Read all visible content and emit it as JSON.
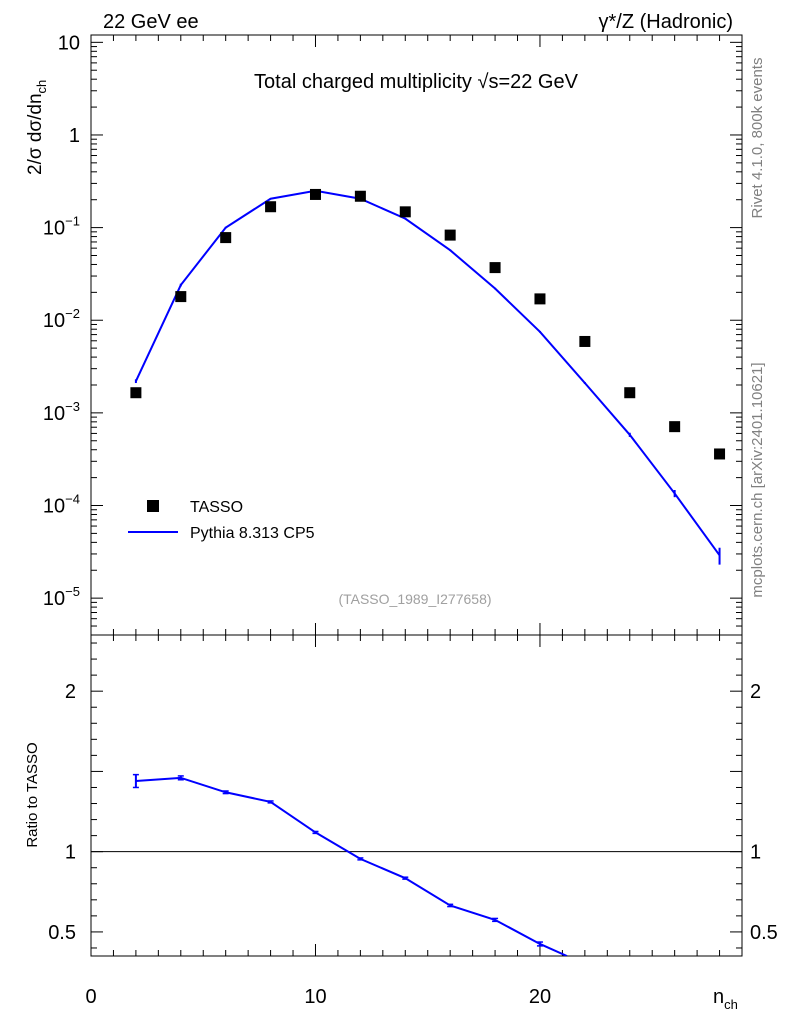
{
  "header": {
    "left_label": "22 GeV ee",
    "right_label": "γ*/Z (Hadronic)"
  },
  "side_labels": {
    "rivet": "Rivet 4.1.0,  800k events",
    "mcplots": "mcplots.cern.ch [arXiv:2401.10621]"
  },
  "chart_data": {
    "type": "scatter",
    "title": "Total charged multiplicity √s=22 GeV",
    "analysis_id": "(TASSO_1989_I277658)",
    "xlabel": "n_ch",
    "ylabel_main": "2/σ  dσ/dn_ch",
    "ylabel_ratio": "Ratio to TASSO",
    "xlim": [
      0,
      29
    ],
    "ylim_main": [
      4e-06,
      12
    ],
    "ylim_ratio": [
      0.35,
      2.35
    ],
    "x_ticks": [
      "0",
      "10",
      "20"
    ],
    "y_ticks_main": [
      {
        "value": 10,
        "mantissa": "10",
        "exp": ""
      },
      {
        "value": 1,
        "mantissa": "1",
        "exp": ""
      },
      {
        "value": 0.1,
        "mantissa": "10",
        "exp": "−1"
      },
      {
        "value": 0.01,
        "mantissa": "10",
        "exp": "−2"
      },
      {
        "value": 0.001,
        "mantissa": "10",
        "exp": "−3"
      },
      {
        "value": 0.0001,
        "mantissa": "10",
        "exp": "−4"
      },
      {
        "value": 1e-05,
        "mantissa": "10",
        "exp": "−5"
      }
    ],
    "y_ticks_ratio": [
      {
        "value": 2,
        "label": "2"
      },
      {
        "value": 1,
        "label": "1"
      },
      {
        "value": 0.5,
        "label": "0.5"
      }
    ],
    "legend": {
      "position": "bottom-left",
      "data_label": "TASSO",
      "mc_label": "Pythia 8.313 CP5"
    },
    "colors": {
      "data": "#000000",
      "mc": "#0000ff",
      "ref_line": "#000000"
    },
    "series": [
      {
        "name": "TASSO",
        "x": [
          2,
          4,
          6,
          8,
          10,
          12,
          14,
          16,
          18,
          20,
          22,
          24,
          26,
          28
        ],
        "values": [
          0.00165,
          0.018,
          0.078,
          0.168,
          0.228,
          0.218,
          0.148,
          0.083,
          0.037,
          0.017,
          0.0059,
          0.00165,
          0.00071,
          0.00036
        ]
      },
      {
        "name": "Pythia 8.313 CP5",
        "x": [
          2,
          4,
          6,
          8,
          10,
          12,
          14,
          16,
          18,
          20,
          22,
          24,
          26,
          28
        ],
        "values": [
          0.0022,
          0.024,
          0.1,
          0.205,
          0.25,
          0.205,
          0.125,
          0.057,
          0.022,
          0.0075,
          0.0021,
          0.00058,
          0.000135,
          2.9e-05
        ],
        "errors": [
          0.0001,
          0.0008,
          0.002,
          0.003,
          0.004,
          0.003,
          0.002,
          0.001,
          0.0004,
          0.00015,
          5e-05,
          3e-05,
          1.2e-05,
          6e-06
        ]
      }
    ],
    "ratio": {
      "x": [
        2,
        4,
        6,
        8,
        10,
        12,
        14,
        16,
        18,
        20,
        21.2
      ],
      "values": [
        1.44,
        1.46,
        1.37,
        1.31,
        1.12,
        0.955,
        0.835,
        0.665,
        0.575,
        0.425,
        0.35
      ],
      "errors": [
        0.04,
        0.012,
        0.008,
        0.006,
        0.006,
        0.006,
        0.006,
        0.007,
        0.009,
        0.012,
        0
      ]
    }
  }
}
